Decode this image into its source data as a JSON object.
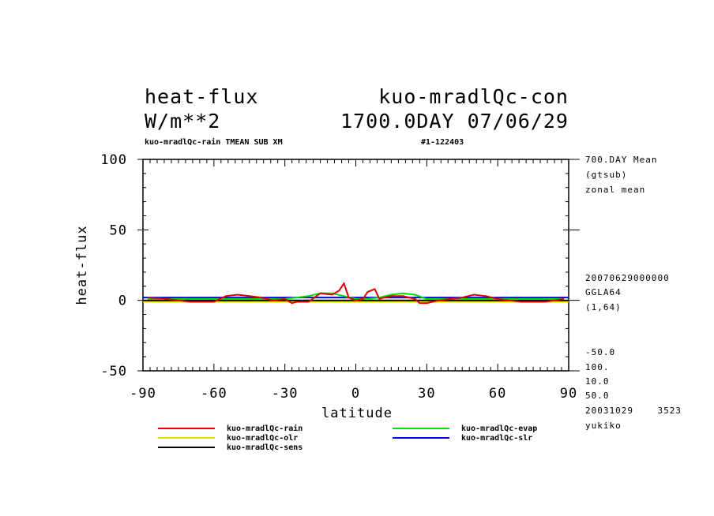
{
  "header": {
    "left_line1": "heat-flux",
    "left_line2": "W/m**2",
    "right_line1": "kuo-mradlQc-con",
    "right_line2": "1700.0DAY 07/06/29",
    "subtitle_left": "kuo-mradlQc-rain TMEAN SUB XM",
    "subtitle_right": "#1-122403"
  },
  "side_info": {
    "top": [
      "700.DAY Mean",
      "(gtsub)",
      "zonal mean"
    ],
    "middle": [
      "20070629000000",
      "GGLA64",
      "(1,64)"
    ],
    "bottom": [
      "-50.0",
      "100.",
      "10.0",
      "50.0",
      "20031029    3523",
      "yukiko"
    ]
  },
  "colors": {
    "rain": "#e00000",
    "evap": "#00e000",
    "olr": "#0000e0",
    "slr": "#e0e000",
    "sens": "#000000"
  },
  "chart_data": {
    "type": "line",
    "xlabel": "latitude",
    "ylabel": "heat-flux",
    "xlim": [
      -90,
      90
    ],
    "ylim": [
      -50,
      100
    ],
    "xticks": [
      "-90",
      "-60",
      "-30",
      "0",
      "30",
      "60",
      "90"
    ],
    "yticks": [
      "-50",
      "0",
      "50",
      "100"
    ],
    "legend_placement": "bottom",
    "series": [
      {
        "name": "kuo-mradlQc-rain",
        "color_key": "rain",
        "x": [
          -88,
          -80,
          -70,
          -60,
          -55,
          -50,
          -45,
          -40,
          -35,
          -30,
          -27,
          -25,
          -20,
          -15,
          -10,
          -7,
          -5,
          -3,
          0,
          3,
          5,
          8,
          10,
          12,
          15,
          20,
          25,
          27,
          30,
          35,
          40,
          45,
          50,
          55,
          60,
          65,
          70,
          80,
          88
        ],
        "y": [
          2,
          1,
          -1,
          -1,
          3,
          4,
          3,
          2,
          0,
          1,
          -2,
          -1,
          -1,
          5,
          4,
          7,
          12,
          2,
          0,
          1,
          6,
          8,
          1,
          2,
          3,
          3,
          1,
          -2,
          -2,
          0,
          1,
          2,
          4,
          3,
          1,
          0,
          -1,
          -1,
          1
        ]
      },
      {
        "name": "kuo-mradlQc-evap",
        "color_key": "evap",
        "x": [
          -88,
          -70,
          -50,
          -30,
          -20,
          -15,
          -10,
          -5,
          0,
          5,
          10,
          15,
          20,
          25,
          30,
          50,
          70,
          88
        ],
        "y": [
          1,
          1,
          1,
          1,
          3,
          5,
          5,
          3,
          1,
          1,
          2,
          4,
          5,
          4,
          1,
          1,
          1,
          1
        ]
      },
      {
        "name": "kuo-mradlQc-olr",
        "color_key": "olr",
        "x": [
          -90,
          90
        ],
        "y": [
          2,
          2
        ]
      },
      {
        "name": "kuo-mradlQc-slr",
        "color_key": "slr",
        "x": [
          -90,
          -60,
          -30,
          0,
          30,
          60,
          90
        ],
        "y": [
          -1,
          -1,
          -1,
          -1,
          -1,
          -1,
          -1
        ]
      },
      {
        "name": "kuo-mradlQc-sens",
        "color_key": "sens",
        "x": [
          -90,
          -60,
          -30,
          0,
          30,
          60,
          90
        ],
        "y": [
          0,
          0,
          0,
          0,
          0,
          0,
          0
        ]
      }
    ]
  }
}
